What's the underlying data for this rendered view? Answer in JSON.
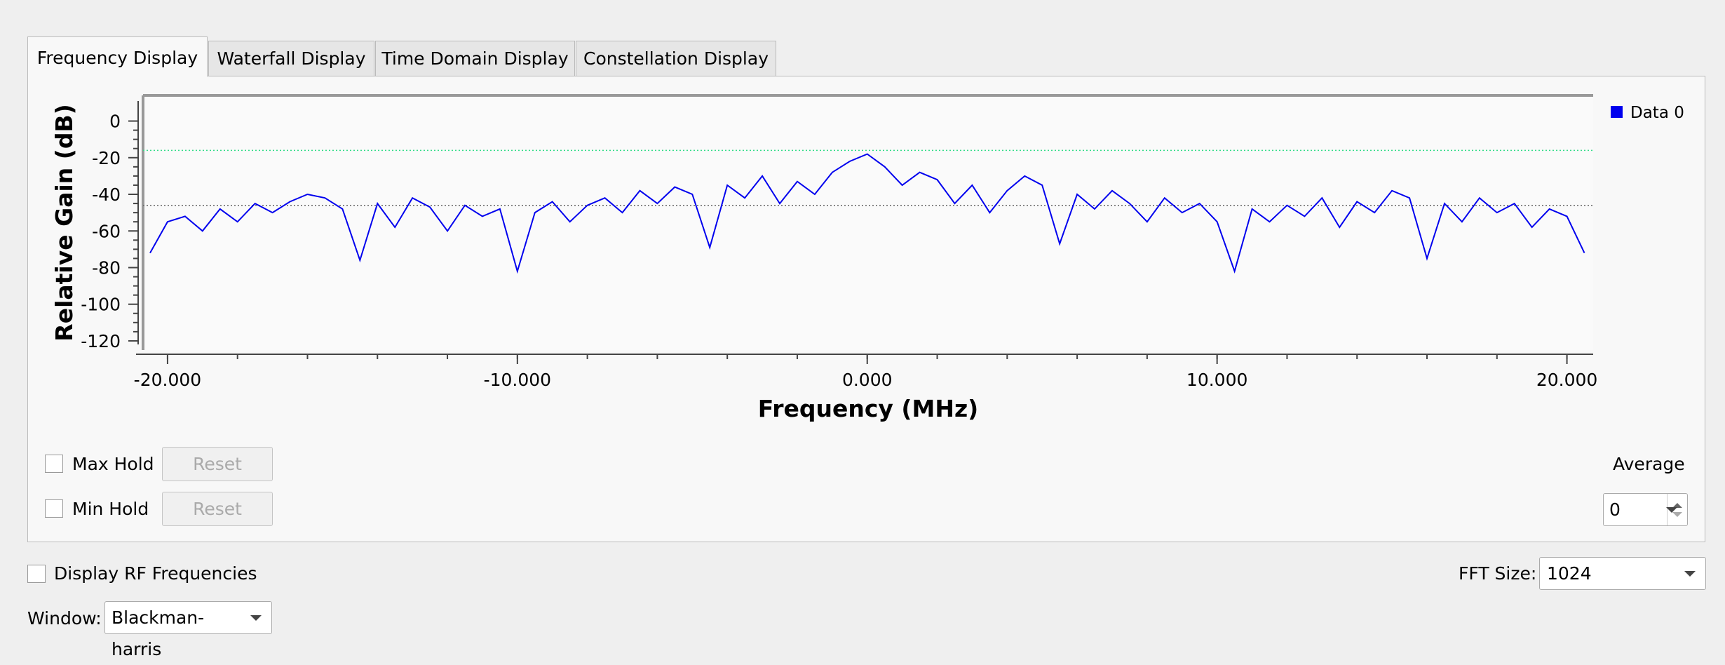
{
  "tabs": [
    "Frequency Display",
    "Waterfall Display",
    "Time Domain Display",
    "Constellation Display"
  ],
  "chart_data": {
    "type": "line",
    "xlabel": "Frequency (MHz)",
    "ylabel": "Relative Gain (dB)",
    "xlim": [
      -20.7,
      20.75
    ],
    "ylim": [
      -125,
      14
    ],
    "xticks": [
      {
        "value": -20,
        "label": "-20.000"
      },
      {
        "value": -10,
        "label": "-10.000"
      },
      {
        "value": 0,
        "label": "0.000"
      },
      {
        "value": 10,
        "label": "10.000"
      },
      {
        "value": 20,
        "label": "20.000"
      }
    ],
    "yticks": [
      0,
      -20,
      -40,
      -60,
      -80,
      -100,
      -120
    ],
    "reference_lines": [
      {
        "value": -16,
        "color": "#33dd88"
      },
      {
        "value": -46,
        "color": "#666666"
      }
    ],
    "legend": "top-right",
    "x": [
      -20.5,
      -20,
      -19.5,
      -19,
      -18.5,
      -18,
      -17.5,
      -17,
      -16.5,
      -16,
      -15.5,
      -15,
      -14.5,
      -14,
      -13.5,
      -13,
      -12.5,
      -12,
      -11.5,
      -11,
      -10.5,
      -10,
      -9.5,
      -9,
      -8.5,
      -8,
      -7.5,
      -7,
      -6.5,
      -6,
      -5.5,
      -5,
      -4.5,
      -4,
      -3.5,
      -3,
      -2.5,
      -2,
      -1.5,
      -1,
      -0.5,
      0,
      0.5,
      1,
      1.5,
      2,
      2.5,
      3,
      3.5,
      4,
      4.5,
      5,
      5.5,
      6,
      6.5,
      7,
      7.5,
      8,
      8.5,
      9,
      9.5,
      10,
      10.5,
      11,
      11.5,
      12,
      12.5,
      13,
      13.5,
      14,
      14.5,
      15,
      15.5,
      16,
      16.5,
      17,
      17.5,
      18,
      18.5,
      19,
      19.5,
      20,
      20.5
    ],
    "series": [
      {
        "name": "Data 0",
        "color": "#0000ee",
        "values": [
          -72,
          -55,
          -52,
          -60,
          -48,
          -55,
          -45,
          -50,
          -44,
          -40,
          -42,
          -48,
          -76,
          -45,
          -58,
          -42,
          -47,
          -60,
          -46,
          -52,
          -48,
          -82,
          -50,
          -44,
          -55,
          -46,
          -42,
          -50,
          -38,
          -45,
          -36,
          -40,
          -69,
          -35,
          -42,
          -30,
          -45,
          -33,
          -40,
          -28,
          -22,
          -18,
          -25,
          -35,
          -28,
          -32,
          -45,
          -35,
          -50,
          -38,
          -30,
          -35,
          -67,
          -40,
          -48,
          -38,
          -45,
          -55,
          -42,
          -50,
          -45,
          -55,
          -82,
          -48,
          -55,
          -46,
          -52,
          -42,
          -58,
          -44,
          -50,
          -38,
          -42,
          -75,
          -45,
          -55,
          -42,
          -50,
          -45,
          -58,
          -48,
          -52,
          -72
        ]
      }
    ]
  },
  "controls": {
    "max_hold": "Max Hold",
    "min_hold": "Min Hold",
    "reset": "Reset",
    "average_label": "Average",
    "average_value": "0",
    "rf": "Display RF Frequencies",
    "fft_label": "FFT Size:",
    "fft_value": "1024",
    "window_label": "Window:",
    "window_value": "Blackman-harris"
  }
}
